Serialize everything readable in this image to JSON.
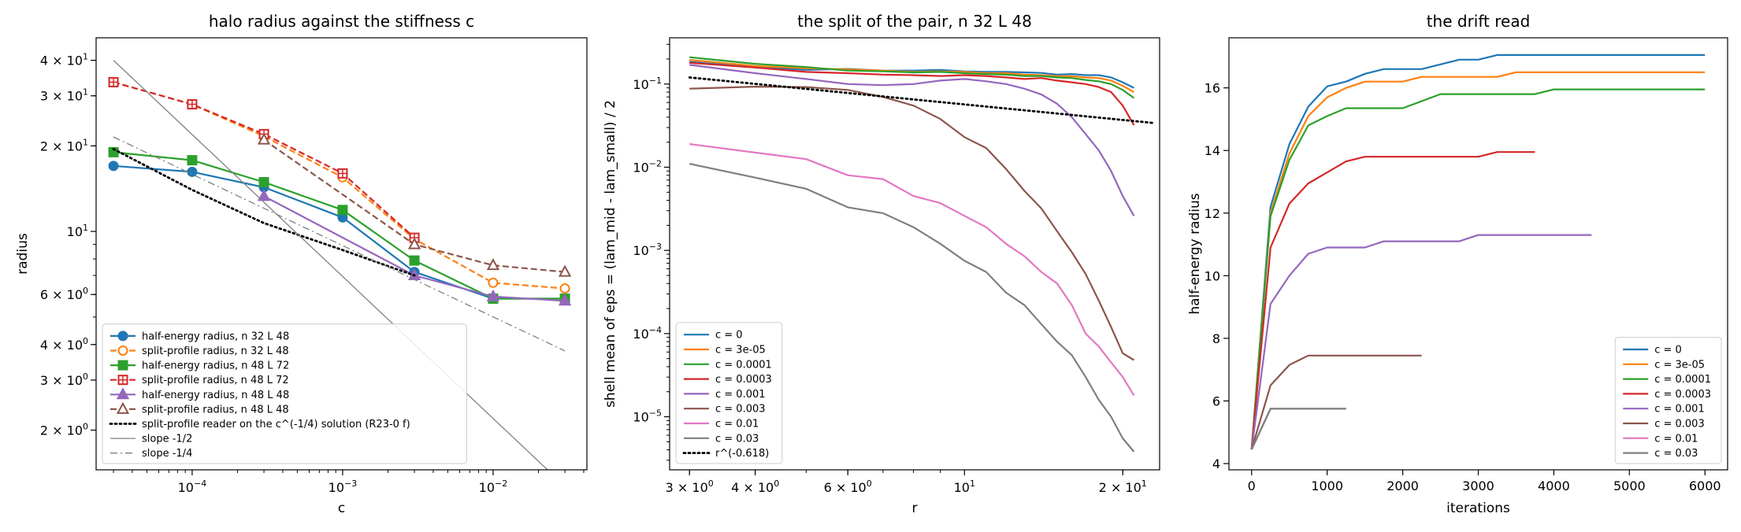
{
  "chart_data": [
    {
      "type": "line",
      "title": "halo radius against the stiffness c",
      "xlabel": "c",
      "ylabel": "radius",
      "xscale": "log",
      "yscale": "log",
      "xlim": [
        2.3e-05,
        0.042
      ],
      "ylim": [
        1.45,
        48
      ],
      "x_ticks": [
        {
          "value": 0.0001,
          "base": "10",
          "exp": "−4"
        },
        {
          "value": 0.001,
          "base": "10",
          "exp": "−3"
        },
        {
          "value": 0.01,
          "base": "10",
          "exp": "−2"
        }
      ],
      "y_ticks": [
        {
          "value": 2,
          "base": "2 × 10",
          "exp": "0"
        },
        {
          "value": 3,
          "base": "3 × 10",
          "exp": "0"
        },
        {
          "value": 4,
          "base": "4 × 10",
          "exp": "0"
        },
        {
          "value": 6,
          "base": "6 × 10",
          "exp": "0"
        },
        {
          "value": 10,
          "base": "10",
          "exp": "1"
        },
        {
          "value": 20,
          "base": "2 × 10",
          "exp": "1"
        },
        {
          "value": 30,
          "base": "3 × 10",
          "exp": "1"
        },
        {
          "value": 40,
          "base": "4 × 10",
          "exp": "1"
        }
      ],
      "legend_position": "lower-left",
      "series": [
        {
          "name": "half-energy radius, n 32 L 48",
          "color": "#1f77b4",
          "dash": "solid",
          "marker": "circle",
          "filled": true,
          "x": [
            3e-05,
            0.0001,
            0.0003,
            0.001,
            0.003,
            0.01,
            0.03
          ],
          "y": [
            17.0,
            16.2,
            14.3,
            11.2,
            7.2,
            5.8,
            5.8
          ]
        },
        {
          "name": "split-profile radius, n 32 L 48",
          "color": "#ff7f0e",
          "dash": "dashed",
          "marker": "circle",
          "filled": false,
          "x": [
            3e-05,
            0.0001,
            0.0003,
            0.001,
            0.003,
            0.01,
            0.03
          ],
          "y": [
            33.5,
            28.0,
            21.6,
            15.5,
            9.4,
            6.6,
            6.3
          ]
        },
        {
          "name": "half-energy radius, n 48 L 72",
          "color": "#2ca02c",
          "dash": "solid",
          "marker": "square",
          "filled": true,
          "x": [
            3e-05,
            0.0001,
            0.0003,
            0.001,
            0.003,
            0.01,
            0.03
          ],
          "y": [
            19.0,
            17.8,
            14.9,
            11.9,
            7.9,
            5.8,
            5.8
          ]
        },
        {
          "name": "split-profile radius, n 48 L 72",
          "color": "#d62728",
          "dash": "dashed",
          "marker": "square-plus",
          "filled": false,
          "x": [
            3e-05,
            0.0001,
            0.0003,
            0.001,
            0.003
          ],
          "y": [
            33.5,
            28.0,
            22.0,
            16.0,
            9.5
          ]
        },
        {
          "name": "half-energy radius, n 48 L 48",
          "color": "#9467bd",
          "dash": "solid",
          "marker": "triangle",
          "filled": true,
          "x": [
            0.0003,
            0.003,
            0.01,
            0.03
          ],
          "y": [
            13.3,
            7.0,
            5.9,
            5.7
          ]
        },
        {
          "name": "split-profile radius, n 48 L 48",
          "color": "#8c564b",
          "dash": "dashed",
          "marker": "triangle",
          "filled": false,
          "x": [
            0.0003,
            0.003,
            0.01,
            0.03
          ],
          "y": [
            21.0,
            9.0,
            7.6,
            7.2
          ]
        },
        {
          "name": "split-profile reader on the c^(-1/4) solution (R23-0 f)",
          "color": "#000000",
          "dash": "dotted",
          "marker": "none",
          "x": [
            3e-05,
            0.0001,
            0.0003,
            0.001,
            0.003
          ],
          "y": [
            19.5,
            14.0,
            10.7,
            8.6,
            7.0
          ]
        },
        {
          "name": "slope -1/2",
          "color": "#808080",
          "dash": "solid",
          "marker": "none",
          "thin": true,
          "x": [
            3e-05,
            0.03
          ],
          "y": [
            40.0,
            1.27
          ]
        },
        {
          "name": "slope -1/4",
          "color": "#808080",
          "dash": "dashdot",
          "marker": "none",
          "thin": true,
          "x": [
            3e-05,
            0.03
          ],
          "y": [
            21.5,
            3.8
          ]
        }
      ]
    },
    {
      "type": "line",
      "title": "the split of the pair, n 32 L 48",
      "xlabel": "r",
      "ylabel": "shell mean of eps = (lam_mid - lam_small) / 2",
      "xscale": "log",
      "yscale": "log",
      "xlim": [
        2.75,
        23.5
      ],
      "ylim": [
        2.3e-06,
        0.36
      ],
      "x_ticks": [
        {
          "value": 3,
          "base": "3 × 10",
          "exp": "0"
        },
        {
          "value": 4,
          "base": "4 × 10",
          "exp": "0"
        },
        {
          "value": 6,
          "base": "6 × 10",
          "exp": "0"
        },
        {
          "value": 10,
          "base": "10",
          "exp": "1"
        },
        {
          "value": 20,
          "base": "2 × 10",
          "exp": "1"
        }
      ],
      "y_ticks": [
        {
          "value": 1e-05,
          "base": "10",
          "exp": "−5"
        },
        {
          "value": 0.0001,
          "base": "10",
          "exp": "−4"
        },
        {
          "value": 0.001,
          "base": "10",
          "exp": "−3"
        },
        {
          "value": 0.01,
          "base": "10",
          "exp": "−2"
        },
        {
          "value": 0.1,
          "base": "10",
          "exp": "−1"
        }
      ],
      "legend_position": "lower-left",
      "series": [
        {
          "name": "c = 0",
          "color": "#1f77b4",
          "dash": "solid",
          "x": [
            3,
            4,
            5,
            6,
            7,
            8,
            9,
            10,
            11,
            12,
            13,
            14,
            15,
            16,
            17,
            18,
            19,
            20,
            21
          ],
          "y": [
            0.185,
            0.16,
            0.148,
            0.152,
            0.145,
            0.145,
            0.148,
            0.142,
            0.14,
            0.14,
            0.138,
            0.136,
            0.13,
            0.132,
            0.128,
            0.128,
            0.12,
            0.105,
            0.09
          ]
        },
        {
          "name": "c = 3e-05",
          "color": "#ff7f0e",
          "dash": "solid",
          "x": [
            3,
            4,
            5,
            6,
            7,
            8,
            9,
            10,
            11,
            12,
            13,
            14,
            15,
            16,
            17,
            18,
            19,
            20,
            21
          ],
          "y": [
            0.195,
            0.165,
            0.155,
            0.15,
            0.145,
            0.14,
            0.142,
            0.14,
            0.135,
            0.135,
            0.13,
            0.128,
            0.124,
            0.124,
            0.12,
            0.118,
            0.11,
            0.095,
            0.08
          ]
        },
        {
          "name": "c = 0.0001",
          "color": "#2ca02c",
          "dash": "solid",
          "x": [
            3,
            4,
            5,
            6,
            7,
            8,
            9,
            10,
            11,
            12,
            13,
            14,
            15,
            16,
            17,
            18,
            19,
            20,
            21
          ],
          "y": [
            0.21,
            0.175,
            0.16,
            0.145,
            0.142,
            0.138,
            0.14,
            0.135,
            0.132,
            0.13,
            0.125,
            0.125,
            0.12,
            0.118,
            0.112,
            0.108,
            0.1,
            0.085,
            0.068
          ]
        },
        {
          "name": "c = 0.0003",
          "color": "#d62728",
          "dash": "solid",
          "x": [
            3,
            4,
            5,
            6,
            7,
            8,
            9,
            10,
            11,
            12,
            13,
            14,
            15,
            16,
            17,
            18,
            19,
            20,
            21
          ],
          "y": [
            0.18,
            0.158,
            0.14,
            0.135,
            0.13,
            0.128,
            0.125,
            0.128,
            0.125,
            0.12,
            0.115,
            0.118,
            0.11,
            0.105,
            0.1,
            0.092,
            0.08,
            0.055,
            0.032
          ]
        },
        {
          "name": "c = 0.001",
          "color": "#9467bd",
          "dash": "solid",
          "x": [
            3,
            4,
            5,
            6,
            7,
            8,
            9,
            10,
            11,
            12,
            13,
            14,
            15,
            16,
            17,
            18,
            19,
            20,
            21
          ],
          "y": [
            0.17,
            0.135,
            0.115,
            0.1,
            0.097,
            0.1,
            0.11,
            0.115,
            0.108,
            0.1,
            0.088,
            0.075,
            0.058,
            0.04,
            0.025,
            0.016,
            0.009,
            0.0045,
            0.0026
          ]
        },
        {
          "name": "c = 0.003",
          "color": "#8c564b",
          "dash": "solid",
          "x": [
            3,
            4,
            5,
            6,
            7,
            8,
            9,
            10,
            11,
            12,
            13,
            14,
            15,
            16,
            17,
            18,
            19,
            20,
            21
          ],
          "y": [
            0.088,
            0.093,
            0.092,
            0.085,
            0.07,
            0.055,
            0.038,
            0.023,
            0.017,
            0.0095,
            0.0052,
            0.0032,
            0.0017,
            0.00095,
            0.00052,
            0.00025,
            0.00012,
            5.8e-05,
            4.8e-05
          ]
        },
        {
          "name": "c = 0.01",
          "color": "#e377c2",
          "dash": "solid",
          "x": [
            3,
            4,
            5,
            6,
            7,
            8,
            9,
            10,
            11,
            12,
            13,
            14,
            15,
            16,
            17,
            18,
            19,
            20,
            21
          ],
          "y": [
            0.019,
            0.015,
            0.0125,
            0.008,
            0.0072,
            0.0045,
            0.0037,
            0.0026,
            0.0019,
            0.0012,
            0.00085,
            0.00055,
            0.0004,
            0.00022,
            0.0001,
            7e-05,
            4.5e-05,
            3e-05,
            1.8e-05
          ]
        },
        {
          "name": "c = 0.03",
          "color": "#7f7f7f",
          "dash": "solid",
          "x": [
            3,
            4,
            5,
            6,
            7,
            8,
            9,
            10,
            11,
            12,
            13,
            14,
            15,
            16,
            17,
            18,
            19,
            20,
            21
          ],
          "y": [
            0.011,
            0.0075,
            0.0055,
            0.0033,
            0.0028,
            0.0019,
            0.0012,
            0.00075,
            0.00055,
            0.00031,
            0.00022,
            0.00013,
            8e-05,
            5.5e-05,
            3e-05,
            1.6e-05,
            1e-05,
            5.5e-06,
            3.8e-06
          ]
        },
        {
          "name": "r^(-0.618)",
          "color": "#000000",
          "dash": "dotted",
          "x": [
            3,
            23
          ],
          "y": [
            0.12,
            0.0339
          ]
        }
      ]
    },
    {
      "type": "line",
      "title": "the drift read",
      "xlabel": "iterations",
      "ylabel": "half-energy radius",
      "xscale": "linear",
      "yscale": "linear",
      "xlim": [
        -300,
        6300
      ],
      "ylim": [
        3.8,
        17.6
      ],
      "x_ticks": [
        {
          "value": 0,
          "label": "0"
        },
        {
          "value": 1000,
          "label": "1000"
        },
        {
          "value": 2000,
          "label": "2000"
        },
        {
          "value": 3000,
          "label": "3000"
        },
        {
          "value": 4000,
          "label": "4000"
        },
        {
          "value": 5000,
          "label": "5000"
        },
        {
          "value": 6000,
          "label": "6000"
        }
      ],
      "y_ticks": [
        {
          "value": 4,
          "label": "4"
        },
        {
          "value": 6,
          "label": "6"
        },
        {
          "value": 8,
          "label": "8"
        },
        {
          "value": 10,
          "label": "10"
        },
        {
          "value": 12,
          "label": "12"
        },
        {
          "value": 14,
          "label": "14"
        },
        {
          "value": 16,
          "label": "16"
        }
      ],
      "legend_position": "lower-right",
      "series": [
        {
          "name": "c = 0",
          "color": "#1f77b4",
          "dash": "solid",
          "x": [
            0,
            250,
            500,
            750,
            1000,
            1250,
            1500,
            1750,
            2000,
            2250,
            2500,
            2750,
            3000,
            3250,
            3500,
            3750,
            4000,
            4500,
            5000,
            5500,
            6000
          ],
          "y": [
            4.45,
            12.2,
            14.2,
            15.4,
            16.05,
            16.2,
            16.45,
            16.6,
            16.6,
            16.6,
            16.75,
            16.9,
            16.9,
            17.05,
            17.05,
            17.05,
            17.05,
            17.05,
            17.05,
            17.05,
            17.05
          ]
        },
        {
          "name": "c = 3e-05",
          "color": "#ff7f0e",
          "dash": "solid",
          "x": [
            0,
            250,
            500,
            750,
            1000,
            1250,
            1500,
            1750,
            2000,
            2250,
            2500,
            2750,
            3000,
            3250,
            3500,
            3750,
            4000,
            4500,
            5000,
            5500,
            6000
          ],
          "y": [
            4.45,
            12.0,
            13.9,
            15.1,
            15.7,
            16.0,
            16.2,
            16.2,
            16.2,
            16.35,
            16.35,
            16.35,
            16.35,
            16.35,
            16.5,
            16.5,
            16.5,
            16.5,
            16.5,
            16.5,
            16.5
          ]
        },
        {
          "name": "c = 0.0001",
          "color": "#2ca02c",
          "dash": "solid",
          "x": [
            0,
            250,
            500,
            750,
            1000,
            1250,
            1500,
            1750,
            2000,
            2500,
            3000,
            3500,
            3750,
            4000,
            4500,
            5000,
            5500,
            6000
          ],
          "y": [
            4.45,
            11.9,
            13.7,
            14.8,
            15.1,
            15.35,
            15.35,
            15.35,
            15.35,
            15.8,
            15.8,
            15.8,
            15.8,
            15.95,
            15.95,
            15.95,
            15.95,
            15.95
          ]
        },
        {
          "name": "c = 0.0003",
          "color": "#d62728",
          "dash": "solid",
          "x": [
            0,
            250,
            500,
            750,
            1000,
            1250,
            1500,
            1750,
            2000,
            2500,
            3000,
            3250,
            3500,
            3750
          ],
          "y": [
            4.45,
            10.9,
            12.3,
            12.95,
            13.3,
            13.65,
            13.8,
            13.8,
            13.8,
            13.8,
            13.8,
            13.95,
            13.95,
            13.95
          ]
        },
        {
          "name": "c = 0.001",
          "color": "#9467bd",
          "dash": "solid",
          "x": [
            0,
            250,
            500,
            750,
            1000,
            1250,
            1500,
            1750,
            2000,
            2500,
            2750,
            3000,
            3500,
            4000,
            4500
          ],
          "y": [
            4.45,
            9.1,
            10.0,
            10.7,
            10.9,
            10.9,
            10.9,
            11.1,
            11.1,
            11.1,
            11.1,
            11.3,
            11.3,
            11.3,
            11.3
          ]
        },
        {
          "name": "c = 0.003",
          "color": "#8c564b",
          "dash": "solid",
          "x": [
            0,
            250,
            500,
            750,
            1000,
            1500,
            2000,
            2250
          ],
          "y": [
            4.45,
            6.5,
            7.15,
            7.45,
            7.45,
            7.45,
            7.45,
            7.45
          ]
        },
        {
          "name": "c = 0.01",
          "color": "#e377c2",
          "dash": "solid",
          "x": [
            0,
            250,
            500,
            750,
            1000,
            1250
          ],
          "y": [
            4.45,
            5.75,
            5.75,
            5.75,
            5.75,
            5.75
          ]
        },
        {
          "name": "c = 0.03",
          "color": "#7f7f7f",
          "dash": "solid",
          "x": [
            0,
            250,
            500,
            750,
            1000,
            1250
          ],
          "y": [
            4.45,
            5.75,
            5.75,
            5.75,
            5.75,
            5.75
          ]
        }
      ]
    }
  ]
}
